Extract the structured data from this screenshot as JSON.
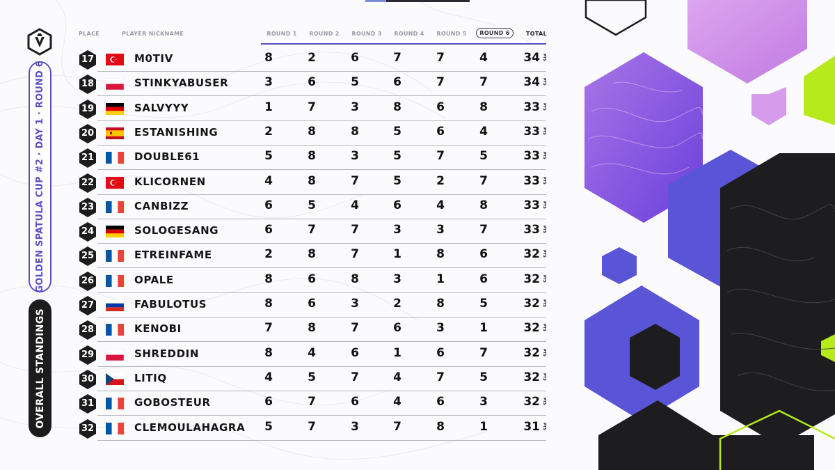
{
  "event": {
    "title": "GOLDEN SPATULA CUP #2 · DAY 1 · ROUND 6",
    "section": "OVERALL STANDINGS"
  },
  "headers": {
    "place": "PLACE",
    "nickname": "PLAYER NICKNAME",
    "rounds": [
      "ROUND 1",
      "ROUND 2",
      "ROUND 3",
      "ROUND 4",
      "ROUND 5",
      "ROUND 6"
    ],
    "total": "TOTAL"
  },
  "pts_label": "PTS",
  "colors": {
    "accent": "#5b4fc4",
    "dark": "#1c1c1c",
    "lime": "#b6ea1a"
  },
  "rows": [
    {
      "place": "17",
      "flag": "turkey",
      "nick": "M0TIV",
      "rounds": [
        "8",
        "2",
        "6",
        "7",
        "7",
        "4"
      ],
      "total": "34"
    },
    {
      "place": "18",
      "flag": "poland",
      "nick": "STINKYABUSER",
      "rounds": [
        "3",
        "6",
        "5",
        "6",
        "7",
        "7"
      ],
      "total": "34"
    },
    {
      "place": "19",
      "flag": "germany",
      "nick": "SALVYYY",
      "rounds": [
        "1",
        "7",
        "3",
        "8",
        "6",
        "8"
      ],
      "total": "33"
    },
    {
      "place": "20",
      "flag": "spain",
      "nick": "ESTANISHING",
      "rounds": [
        "2",
        "8",
        "8",
        "5",
        "6",
        "4"
      ],
      "total": "33"
    },
    {
      "place": "21",
      "flag": "france",
      "nick": "DOUBLE61",
      "rounds": [
        "5",
        "8",
        "3",
        "5",
        "7",
        "5"
      ],
      "total": "33"
    },
    {
      "place": "22",
      "flag": "turkey",
      "nick": "KLICORNEN",
      "rounds": [
        "4",
        "8",
        "7",
        "5",
        "2",
        "7"
      ],
      "total": "33"
    },
    {
      "place": "23",
      "flag": "france",
      "nick": "CANBIZZ",
      "rounds": [
        "6",
        "5",
        "4",
        "6",
        "4",
        "8"
      ],
      "total": "33"
    },
    {
      "place": "24",
      "flag": "germany",
      "nick": "SOLOGESANG",
      "rounds": [
        "6",
        "7",
        "7",
        "3",
        "3",
        "7"
      ],
      "total": "33"
    },
    {
      "place": "25",
      "flag": "france",
      "nick": "ETREINFAME",
      "rounds": [
        "2",
        "8",
        "7",
        "1",
        "8",
        "6"
      ],
      "total": "32"
    },
    {
      "place": "26",
      "flag": "france",
      "nick": "OPALE",
      "rounds": [
        "8",
        "6",
        "8",
        "3",
        "1",
        "6"
      ],
      "total": "32"
    },
    {
      "place": "27",
      "flag": "russia",
      "nick": "FABULOTUS",
      "rounds": [
        "8",
        "6",
        "3",
        "2",
        "8",
        "5"
      ],
      "total": "32"
    },
    {
      "place": "28",
      "flag": "france",
      "nick": "KENOBI",
      "rounds": [
        "7",
        "8",
        "7",
        "6",
        "3",
        "1"
      ],
      "total": "32"
    },
    {
      "place": "29",
      "flag": "poland",
      "nick": "SHREDDIN",
      "rounds": [
        "8",
        "4",
        "6",
        "1",
        "6",
        "7"
      ],
      "total": "32"
    },
    {
      "place": "30",
      "flag": "czechia",
      "nick": "LITIQ",
      "rounds": [
        "4",
        "5",
        "7",
        "4",
        "7",
        "5"
      ],
      "total": "32"
    },
    {
      "place": "31",
      "flag": "france",
      "nick": "GOBOSTEUR",
      "rounds": [
        "6",
        "7",
        "6",
        "4",
        "6",
        "3"
      ],
      "total": "32"
    },
    {
      "place": "32",
      "flag": "france",
      "nick": "CLEMOULAHAGRA",
      "rounds": [
        "5",
        "7",
        "3",
        "7",
        "8",
        "1"
      ],
      "total": "31"
    }
  ]
}
